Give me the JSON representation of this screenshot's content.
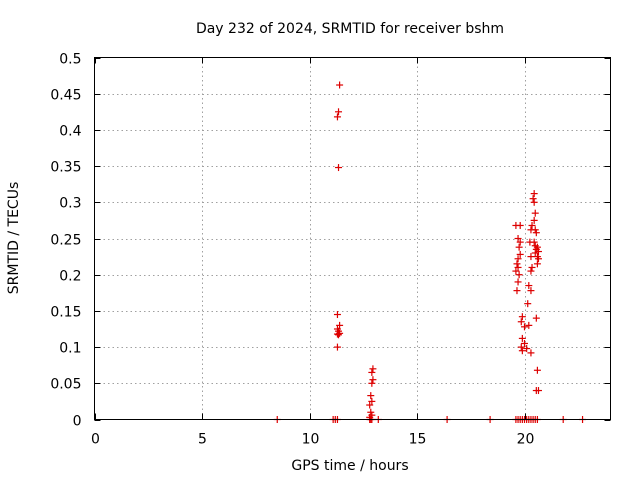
{
  "chart_data": {
    "type": "scatter",
    "title": "Day 232 of 2024, SRMTID for receiver bshm",
    "xlabel": "GPS time / hours",
    "ylabel": "SRMTID / TECUs",
    "xlim": [
      0,
      24
    ],
    "ylim": [
      0,
      0.5
    ],
    "xticks": [
      0,
      5,
      10,
      15,
      20
    ],
    "yticks": [
      0,
      0.05,
      0.1,
      0.15,
      0.2,
      0.25,
      0.3,
      0.35,
      0.4,
      0.45,
      0.5
    ],
    "xtick_labels": [
      "0",
      "5",
      "10",
      "15",
      "20"
    ],
    "ytick_labels": [
      "0",
      "0.05",
      "0.1",
      "0.15",
      "0.2",
      "0.25",
      "0.3",
      "0.35",
      "0.4",
      "0.45",
      "0.5"
    ],
    "grid": true,
    "marker": "+",
    "series": [
      {
        "name": "SRMTID",
        "color": "#dd0000",
        "points": [
          [
            8.5,
            0
          ],
          [
            11.1,
            0
          ],
          [
            11.2,
            0
          ],
          [
            11.3,
            0
          ],
          [
            12.8,
            0
          ],
          [
            12.85,
            0
          ],
          [
            12.9,
            0
          ],
          [
            13.2,
            0
          ],
          [
            16.4,
            0
          ],
          [
            18.4,
            0
          ],
          [
            19.6,
            0
          ],
          [
            19.7,
            0
          ],
          [
            19.8,
            0
          ],
          [
            19.9,
            0
          ],
          [
            20.0,
            0
          ],
          [
            20.1,
            0
          ],
          [
            20.2,
            0
          ],
          [
            20.3,
            0
          ],
          [
            20.4,
            0
          ],
          [
            20.5,
            0
          ],
          [
            20.6,
            0
          ],
          [
            21.8,
            0
          ],
          [
            22.7,
            0
          ],
          [
            11.4,
            0.462
          ],
          [
            11.35,
            0.425
          ],
          [
            11.3,
            0.418
          ],
          [
            11.35,
            0.348
          ],
          [
            11.3,
            0.145
          ],
          [
            11.4,
            0.13
          ],
          [
            11.3,
            0.125
          ],
          [
            11.35,
            0.122
          ],
          [
            11.4,
            0.119
          ],
          [
            11.3,
            0.118
          ],
          [
            11.35,
            0.117
          ],
          [
            11.3,
            0.1
          ],
          [
            12.95,
            0.07
          ],
          [
            12.9,
            0.065
          ],
          [
            12.95,
            0.055
          ],
          [
            12.9,
            0.05
          ],
          [
            12.85,
            0.033
          ],
          [
            12.9,
            0.025
          ],
          [
            12.8,
            0.02
          ],
          [
            12.85,
            0.01
          ],
          [
            12.9,
            0.006
          ],
          [
            12.8,
            0.003
          ],
          [
            19.6,
            0.268
          ],
          [
            19.8,
            0.268
          ],
          [
            19.7,
            0.25
          ],
          [
            19.8,
            0.245
          ],
          [
            19.75,
            0.238
          ],
          [
            19.8,
            0.228
          ],
          [
            19.7,
            0.222
          ],
          [
            19.65,
            0.215
          ],
          [
            19.7,
            0.21
          ],
          [
            19.6,
            0.205
          ],
          [
            19.75,
            0.2
          ],
          [
            19.7,
            0.19
          ],
          [
            19.65,
            0.178
          ],
          [
            19.9,
            0.142
          ],
          [
            19.85,
            0.135
          ],
          [
            20.0,
            0.128
          ],
          [
            19.9,
            0.112
          ],
          [
            20.0,
            0.105
          ],
          [
            19.85,
            0.1
          ],
          [
            19.9,
            0.095
          ],
          [
            20.1,
            0.098
          ],
          [
            20.2,
            0.13
          ],
          [
            20.15,
            0.16
          ],
          [
            20.2,
            0.185
          ],
          [
            20.3,
            0.178
          ],
          [
            20.3,
            0.205
          ],
          [
            20.35,
            0.21
          ],
          [
            20.3,
            0.225
          ],
          [
            20.25,
            0.245
          ],
          [
            20.3,
            0.262
          ],
          [
            20.35,
            0.268
          ],
          [
            20.3,
            0.092
          ],
          [
            20.45,
            0.312
          ],
          [
            20.4,
            0.305
          ],
          [
            20.45,
            0.3
          ],
          [
            20.5,
            0.285
          ],
          [
            20.45,
            0.275
          ],
          [
            20.5,
            0.262
          ],
          [
            20.55,
            0.258
          ],
          [
            20.45,
            0.245
          ],
          [
            20.5,
            0.24
          ],
          [
            20.6,
            0.238
          ],
          [
            20.55,
            0.235
          ],
          [
            20.65,
            0.232
          ],
          [
            20.5,
            0.23
          ],
          [
            20.6,
            0.225
          ],
          [
            20.65,
            0.222
          ],
          [
            20.6,
            0.215
          ],
          [
            20.55,
            0.14
          ],
          [
            20.6,
            0.068
          ],
          [
            20.55,
            0.04
          ],
          [
            20.65,
            0.04
          ]
        ]
      }
    ]
  }
}
